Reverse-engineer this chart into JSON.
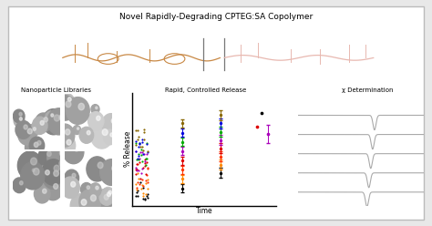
{
  "background_color": "#e8e8e8",
  "panel_bg": "#ffffff",
  "border_color": "#bbbbbb",
  "top_label": "Novel Rapidly-Degrading CPTEG:SA Copolymer",
  "panel1_label": "Nanoparticle Libraries",
  "panel2_label": "Rapid, Controlled Release",
  "panel3_label": "χ Determination",
  "scatter_xlabel": "Time",
  "scatter_ylabel": "% Release",
  "scatter_colors_early": [
    "#000000",
    "#ff8800",
    "#ff4444",
    "#dd0000",
    "#aa00aa",
    "#00aa00",
    "#0000ff",
    "#884400"
  ],
  "dsc_line_color": "#aaaaaa",
  "dsc_n_lines": 5,
  "mol_color_left": "#c88844",
  "mol_color_right": "#e8b8b0"
}
